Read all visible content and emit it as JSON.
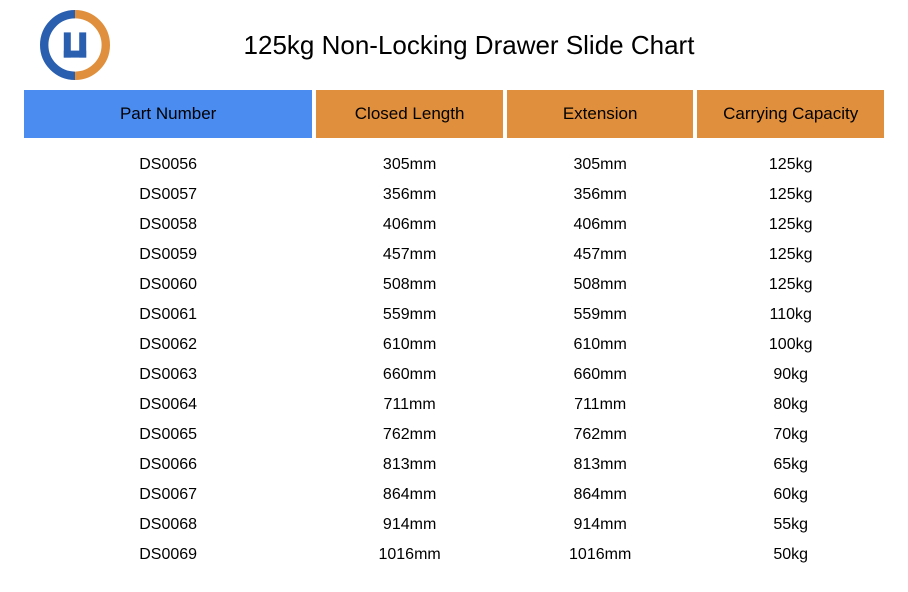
{
  "title": "125kg Non-Locking Drawer Slide Chart",
  "table": {
    "columns": [
      "Part Number",
      "Closed Length",
      "Extension",
      "Carrying Capacity"
    ],
    "header_colors": [
      "#4a8cf0",
      "#e08f3c",
      "#e08f3c",
      "#e08f3c"
    ],
    "column_widths_pct": [
      34,
      22,
      22,
      22
    ],
    "rows": [
      [
        "DS0056",
        "305mm",
        "305mm",
        "125kg"
      ],
      [
        "DS0057",
        "356mm",
        "356mm",
        "125kg"
      ],
      [
        "DS0058",
        "406mm",
        "406mm",
        "125kg"
      ],
      [
        "DS0059",
        "457mm",
        "457mm",
        "125kg"
      ],
      [
        "DS0060",
        "508mm",
        "508mm",
        "125kg"
      ],
      [
        "DS0061",
        "559mm",
        "559mm",
        "110kg"
      ],
      [
        "DS0062",
        "610mm",
        "610mm",
        "100kg"
      ],
      [
        "DS0063",
        "660mm",
        "660mm",
        "90kg"
      ],
      [
        "DS0064",
        "711mm",
        "711mm",
        "80kg"
      ],
      [
        "DS0065",
        "762mm",
        "762mm",
        "70kg"
      ],
      [
        "DS0066",
        "813mm",
        "813mm",
        "65kg"
      ],
      [
        "DS0067",
        "864mm",
        "864mm",
        "60kg"
      ],
      [
        "DS0068",
        "914mm",
        "914mm",
        "55kg"
      ],
      [
        "DS0069",
        "1016mm",
        "1016mm",
        "50kg"
      ]
    ],
    "header_fontsize": 17,
    "cell_fontsize": 16,
    "background_color": "#ffffff",
    "text_color": "#000000"
  },
  "logo": {
    "outer_color_left": "#2a5fb0",
    "outer_color_right": "#e08f3c",
    "inner_color": "#2a5fb0"
  }
}
